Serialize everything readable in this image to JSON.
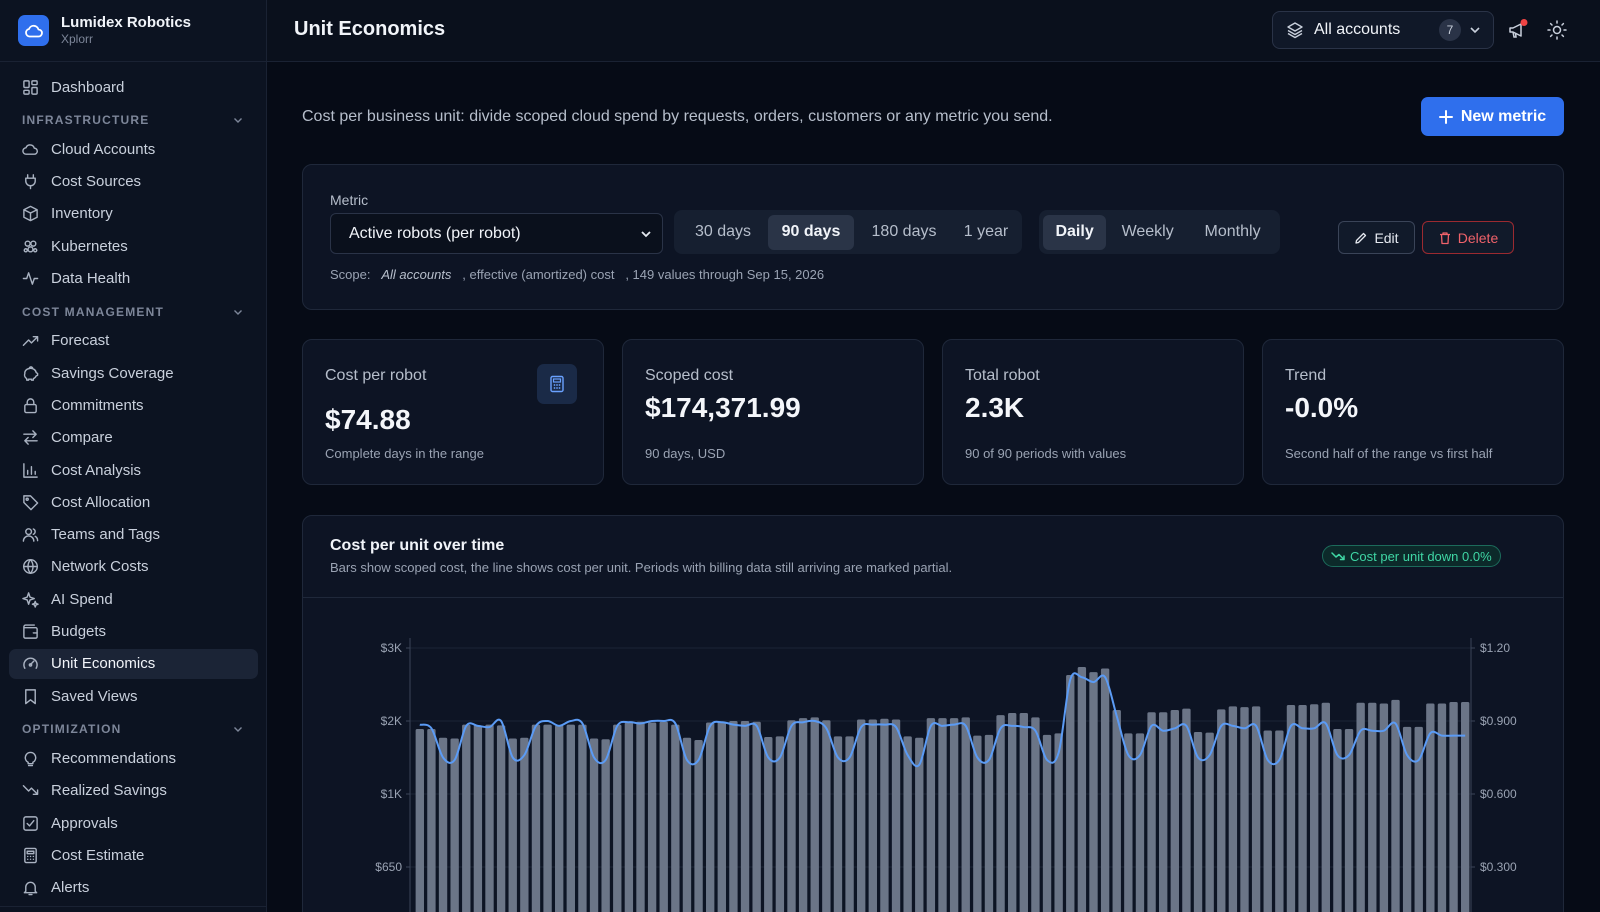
{
  "brand": {
    "name": "Lumidex Robotics",
    "sub": "Xplorr"
  },
  "sidebar": {
    "items": [
      {
        "label": "Dashboard",
        "icon": "dashboard-icon"
      },
      {
        "section": "INFRASTRUCTURE"
      },
      {
        "label": "Cloud Accounts",
        "icon": "cloud-icon"
      },
      {
        "label": "Cost Sources",
        "icon": "plug-icon"
      },
      {
        "label": "Inventory",
        "icon": "box-icon"
      },
      {
        "label": "Kubernetes",
        "icon": "kubernetes-icon"
      },
      {
        "label": "Data Health",
        "icon": "pulse-icon"
      },
      {
        "section": "COST MANAGEMENT"
      },
      {
        "label": "Forecast",
        "icon": "trending-up-icon"
      },
      {
        "label": "Savings Coverage",
        "icon": "piggy-bank-icon"
      },
      {
        "label": "Commitments",
        "icon": "lock-icon"
      },
      {
        "label": "Compare",
        "icon": "arrows-swap-icon"
      },
      {
        "label": "Cost Analysis",
        "icon": "bar-chart-icon"
      },
      {
        "label": "Cost Allocation",
        "icon": "tag-icon"
      },
      {
        "label": "Teams and Tags",
        "icon": "users-icon"
      },
      {
        "label": "Network Costs",
        "icon": "globe-icon"
      },
      {
        "label": "AI Spend",
        "icon": "sparkles-icon"
      },
      {
        "label": "Budgets",
        "icon": "wallet-icon"
      },
      {
        "label": "Unit Economics",
        "icon": "gauge-icon",
        "active": true
      },
      {
        "label": "Saved Views",
        "icon": "bookmark-icon"
      },
      {
        "section": "OPTIMIZATION"
      },
      {
        "label": "Recommendations",
        "icon": "lightbulb-icon"
      },
      {
        "label": "Realized Savings",
        "icon": "trending-down-icon"
      },
      {
        "label": "Approvals",
        "icon": "check-square-icon"
      },
      {
        "label": "Cost Estimate",
        "icon": "calculator-icon"
      },
      {
        "label": "Alerts",
        "icon": "bell-icon"
      }
    ]
  },
  "header": {
    "title": "Unit Economics",
    "accounts_label": "All accounts",
    "accounts_count": "7"
  },
  "main": {
    "intro": "Cost per business unit: divide scoped cloud spend by requests, orders, customers or any metric you send.",
    "new_metric_label": "New metric",
    "metric": {
      "label": "Metric",
      "selected": "Active robots (per robot)",
      "ranges": [
        "30 days",
        "90 days",
        "180 days",
        "1 year"
      ],
      "range_selected": "90 days",
      "granularities": [
        "Daily",
        "Weekly",
        "Monthly"
      ],
      "granularity_selected": "Daily",
      "scope_prefix": "Scope:",
      "scope_accounts": "All accounts",
      "scope_cost": ", effective (amortized) cost",
      "scope_values": ", 149 values through Sep 15, 2026",
      "edit_label": "Edit",
      "delete_label": "Delete"
    },
    "kpis": [
      {
        "title": "Cost per robot",
        "value": "$74.88",
        "sub": "Complete days in the range"
      },
      {
        "title": "Scoped cost",
        "value": "$174,371.99",
        "sub": "90 days, USD"
      },
      {
        "title": "Total robot",
        "value": "2.3K",
        "sub": "90 of 90 periods with values"
      },
      {
        "title": "Trend",
        "value": "-0.0%",
        "sub": "Second half of the range vs first half"
      }
    ],
    "chart": {
      "title": "Cost per unit over time",
      "subtitle": "Bars show scoped cost, the line shows cost per unit. Periods with billing data still arriving are marked partial.",
      "badge": "Cost per unit down 0.0%"
    }
  },
  "colors": {
    "accent": "#2f6fed",
    "bar": "#6b7587",
    "line": "#5b9bf5",
    "positive": "#3fd6a4",
    "danger": "#f0626a"
  },
  "chart_data": {
    "type": "bar",
    "left_axis_ticks": [
      "$3K",
      "$2K",
      "$1K",
      "$650"
    ],
    "right_axis_ticks": [
      "$1.20",
      "$0.900",
      "$0.600",
      "$0.300"
    ],
    "ylim_cost": [
      0,
      3000
    ],
    "ylim_unit": [
      0,
      1.2
    ],
    "series": [
      {
        "name": "Scoped cost",
        "type": "bar",
        "values": [
          1890,
          1890,
          1770,
          1760,
          1950,
          1940,
          1950,
          1940,
          1760,
          1770,
          1950,
          1950,
          1940,
          1950,
          1950,
          1760,
          1750,
          1950,
          1980,
          1990,
          1980,
          1990,
          1950,
          1770,
          1740,
          1980,
          1990,
          2000,
          2000,
          1990,
          1780,
          1790,
          2010,
          2040,
          2050,
          2010,
          1790,
          1790,
          2020,
          2020,
          2030,
          2020,
          1790,
          1770,
          2040,
          2040,
          2040,
          2050,
          1800,
          1810,
          2080,
          2110,
          2110,
          2050,
          1810,
          1830,
          2630,
          2740,
          2670,
          2720,
          2150,
          1830,
          1830,
          2120,
          2120,
          2150,
          2170,
          1850,
          1840,
          2160,
          2200,
          2190,
          2200,
          1870,
          1870,
          2220,
          2220,
          2230,
          2250,
          1890,
          1890,
          2250,
          2250,
          2240,
          2290,
          1920,
          1920,
          2240,
          2240,
          2260,
          2260
        ]
      },
      {
        "name": "Cost per unit",
        "type": "line",
        "values": [
          0.885,
          0.87,
          0.75,
          0.74,
          0.88,
          0.88,
          0.875,
          0.9,
          0.75,
          0.76,
          0.88,
          0.9,
          0.88,
          0.9,
          0.89,
          0.75,
          0.74,
          0.88,
          0.895,
          0.89,
          0.9,
          0.9,
          0.89,
          0.74,
          0.74,
          0.88,
          0.895,
          0.885,
          0.88,
          0.88,
          0.75,
          0.75,
          0.88,
          0.895,
          0.9,
          0.87,
          0.75,
          0.75,
          0.875,
          0.885,
          0.885,
          0.875,
          0.76,
          0.72,
          0.88,
          0.88,
          0.885,
          0.88,
          0.75,
          0.74,
          0.87,
          0.88,
          0.875,
          0.86,
          0.74,
          0.77,
          1.07,
          1.08,
          1.06,
          1.08,
          0.92,
          0.76,
          0.76,
          0.88,
          0.86,
          0.87,
          0.88,
          0.75,
          0.76,
          0.88,
          0.88,
          0.87,
          0.88,
          0.74,
          0.74,
          0.88,
          0.87,
          0.87,
          0.89,
          0.76,
          0.76,
          0.86,
          0.86,
          0.86,
          0.89,
          0.76,
          0.74,
          0.85,
          0.84,
          0.84,
          0.84
        ]
      }
    ]
  }
}
